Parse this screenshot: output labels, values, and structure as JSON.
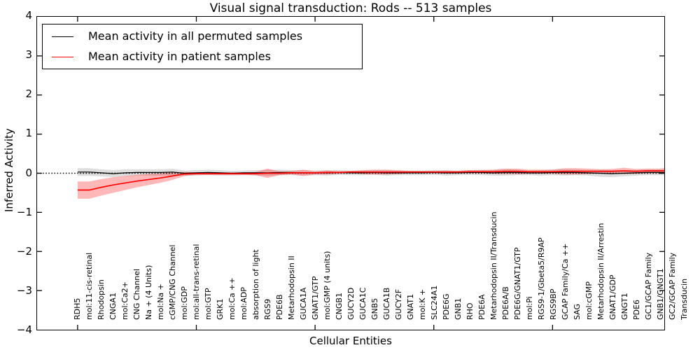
{
  "title": "Visual signal transduction: Rods -- 513 samples",
  "axes": {
    "ylabel": "Inferred Activity",
    "xlabel": "Cellular Entities",
    "ytick_labels": [
      "4",
      "3",
      "2",
      "1",
      "0",
      "−1",
      "−2",
      "−3",
      "−4"
    ],
    "ytick_values": [
      4,
      3,
      2,
      1,
      0,
      -1,
      -2,
      -3,
      -4
    ]
  },
  "legend": {
    "items": [
      {
        "label": "Mean activity in all permuted samples",
        "color": "#000000"
      },
      {
        "label": "Mean activity in patient samples",
        "color": "#ff0000"
      }
    ]
  },
  "colors": {
    "permuted_line": "#000000",
    "permuted_band": "rgba(0,0,0,0.13)",
    "patient_line": "#ff0000",
    "patient_band": "rgba(255,0,0,0.28)",
    "zero_line": "#000000"
  },
  "chart_data": {
    "type": "line",
    "title": "Visual signal transduction: Rods -- 513 samples",
    "xlabel": "Cellular Entities",
    "ylabel": "Inferred Activity",
    "ylim": [
      -4,
      4
    ],
    "grid": false,
    "legend_position": "upper left",
    "zero_reference_line": {
      "y": 0,
      "style": "dotted",
      "color": "#000000"
    },
    "x_major_tick_indices": [
      0,
      10,
      20,
      30,
      40,
      50
    ],
    "categories": [
      "RDH5",
      "mol:11-cis-retinal",
      "Rhodopsin",
      "CNGA1",
      "mol:Ca2+",
      "CNG Channel",
      "Na + (4 Units)",
      "mol:Na +",
      "cGMP/CNG Channel",
      "mol:GDP",
      "mol:all-trans-retinal",
      "mol:GTP",
      "GRK1",
      "mol:Ca ++",
      "mol:ADP",
      "absorption of light",
      "RGS9",
      "PDE6B",
      "Metarhodopsin II",
      "GUCA1A",
      "GNAT1/GTP",
      "mol:GMP (4 units)",
      "CNGB1",
      "GUCY2D",
      "GUCA1C",
      "GNB5",
      "GUCA1B",
      "GUCY2F",
      "GNAT1",
      "mol:K +",
      "SLC24A1",
      "PDE6G",
      "GNB1",
      "RHO",
      "PDE6A",
      "Metarhodopsin II/Transducin",
      "PDE6A/B",
      "PDE6G/GNAT1/GTP",
      "mol:Pi",
      "RGS9-1/Gbeta5/R9AP",
      "RGS9BP",
      "GCAP Family/Ca ++",
      "SAG",
      "mol:cGMP",
      "Metarhodopsin II/Arrestin",
      "GNAT1/GDP",
      "GNGT1",
      "PDE6",
      "GC1/GCAP Family",
      "GNB1/GNGT1",
      "GC2/GCAP Family",
      "Transducin"
    ],
    "series": [
      {
        "name": "Mean activity in all permuted samples",
        "color": "#000000",
        "values": [
          0.03,
          0.03,
          0.01,
          -0.01,
          0.01,
          0.02,
          0.02,
          0.02,
          0.03,
          0.0,
          0.01,
          0.02,
          0.01,
          0.0,
          0.01,
          0.01,
          0.01,
          0.02,
          0.02,
          0.01,
          0.01,
          0.01,
          0.02,
          0.01,
          0.01,
          0.02,
          0.01,
          0.01,
          0.01,
          0.01,
          0.02,
          0.01,
          0.01,
          0.02,
          0.02,
          0.01,
          0.02,
          0.02,
          0.01,
          0.01,
          0.02,
          0.02,
          0.02,
          0.01,
          0.0,
          -0.01,
          0.0,
          0.01,
          0.02,
          0.02,
          0.02,
          0.02
        ],
        "band_lower": [
          -0.07,
          -0.07,
          -0.08,
          -0.1,
          -0.08,
          -0.06,
          -0.06,
          -0.06,
          -0.06,
          -0.07,
          -0.06,
          -0.05,
          -0.06,
          -0.06,
          -0.05,
          -0.06,
          -0.07,
          -0.05,
          -0.04,
          -0.06,
          -0.05,
          -0.06,
          -0.04,
          -0.05,
          -0.05,
          -0.04,
          -0.06,
          -0.05,
          -0.05,
          -0.05,
          -0.04,
          -0.06,
          -0.05,
          -0.04,
          -0.05,
          -0.06,
          -0.06,
          -0.05,
          -0.05,
          -0.06,
          -0.05,
          -0.06,
          -0.05,
          -0.06,
          -0.09,
          -0.1,
          -0.08,
          -0.06,
          -0.05,
          -0.05,
          -0.06,
          -0.06
        ],
        "band_upper": [
          0.13,
          0.13,
          0.1,
          0.08,
          0.1,
          0.1,
          0.1,
          0.1,
          0.12,
          0.07,
          0.08,
          0.09,
          0.08,
          0.06,
          0.07,
          0.08,
          0.09,
          0.09,
          0.08,
          0.08,
          0.07,
          0.08,
          0.08,
          0.07,
          0.07,
          0.08,
          0.08,
          0.07,
          0.07,
          0.07,
          0.08,
          0.08,
          0.07,
          0.08,
          0.09,
          0.08,
          0.1,
          0.09,
          0.07,
          0.08,
          0.09,
          0.1,
          0.09,
          0.08,
          0.09,
          0.08,
          0.08,
          0.08,
          0.09,
          0.09,
          0.1,
          0.1
        ]
      },
      {
        "name": "Mean activity in patient samples",
        "color": "#ff0000",
        "values": [
          -0.43,
          -0.43,
          -0.36,
          -0.3,
          -0.25,
          -0.2,
          -0.16,
          -0.12,
          -0.07,
          -0.02,
          -0.01,
          -0.01,
          -0.01,
          -0.01,
          -0.01,
          -0.01,
          0.0,
          0.0,
          0.01,
          0.01,
          0.01,
          0.02,
          0.02,
          0.03,
          0.03,
          0.03,
          0.03,
          0.03,
          0.03,
          0.03,
          0.03,
          0.03,
          0.03,
          0.04,
          0.04,
          0.04,
          0.05,
          0.05,
          0.04,
          0.04,
          0.04,
          0.05,
          0.05,
          0.05,
          0.05,
          0.05,
          0.06,
          0.05,
          0.06,
          0.06,
          0.07,
          0.07
        ],
        "band_lower": [
          -0.65,
          -0.65,
          -0.57,
          -0.5,
          -0.43,
          -0.36,
          -0.3,
          -0.24,
          -0.17,
          -0.07,
          -0.04,
          -0.04,
          -0.04,
          -0.04,
          -0.04,
          -0.05,
          -0.12,
          -0.05,
          -0.03,
          -0.07,
          -0.03,
          -0.03,
          -0.01,
          0.0,
          -0.02,
          -0.03,
          -0.03,
          -0.02,
          0.0,
          0.0,
          0.0,
          -0.01,
          0.0,
          0.0,
          0.0,
          -0.01,
          -0.02,
          -0.02,
          -0.01,
          -0.01,
          -0.01,
          -0.03,
          -0.03,
          -0.02,
          0.0,
          -0.01,
          -0.02,
          -0.01,
          0.0,
          0.0,
          -0.02,
          -0.01
        ],
        "band_upper": [
          -0.21,
          -0.21,
          -0.15,
          -0.1,
          -0.07,
          -0.04,
          -0.02,
          0.0,
          0.03,
          0.03,
          0.02,
          0.02,
          0.02,
          0.02,
          0.02,
          0.03,
          0.12,
          0.05,
          0.05,
          0.09,
          0.05,
          0.07,
          0.05,
          0.06,
          0.08,
          0.09,
          0.09,
          0.08,
          0.06,
          0.06,
          0.06,
          0.07,
          0.06,
          0.08,
          0.08,
          0.09,
          0.12,
          0.12,
          0.09,
          0.09,
          0.09,
          0.13,
          0.13,
          0.12,
          0.1,
          0.11,
          0.14,
          0.11,
          0.12,
          0.12,
          0.16,
          0.15
        ]
      }
    ]
  }
}
